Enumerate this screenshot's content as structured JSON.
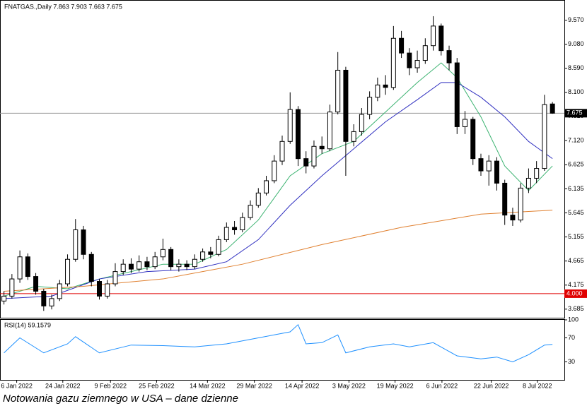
{
  "chart_data": [
    {
      "type": "candlestick",
      "title": "FNATGAS.,Daily  7.863 7.903 7.663 7.675",
      "xlim": [
        -0.5,
        70.5
      ],
      "ylim": [
        3.51,
        9.98
      ],
      "yticks": [
        {
          "value": 9.57,
          "label": "9.570"
        },
        {
          "value": 9.08,
          "label": "9.080"
        },
        {
          "value": 8.59,
          "label": "8.590"
        },
        {
          "value": 8.1,
          "label": "8.100"
        },
        {
          "value": 7.61,
          "label": "7.610"
        },
        {
          "value": 7.12,
          "label": "7.120"
        },
        6.625,
        6.135,
        5.645,
        5.155,
        4.665,
        4.175,
        3.685
      ],
      "open": [
        3.85,
        3.95,
        4.3,
        4.75,
        4.35,
        4.05,
        3.75,
        3.9,
        4.2,
        4.7,
        5.3,
        4.8,
        4.25,
        3.95,
        4.2,
        4.45,
        4.6,
        4.5,
        4.65,
        4.55,
        4.75,
        4.9,
        4.55,
        4.6,
        4.55,
        4.7,
        4.85,
        4.8,
        5.1,
        5.35,
        5.3,
        5.55,
        5.8,
        6.05,
        6.3,
        6.7,
        7.1,
        7.75,
        6.75,
        6.6,
        7.0,
        6.95,
        7.7,
        8.55,
        7.1,
        7.3,
        7.65,
        8.0,
        8.25,
        8.2,
        9.2,
        8.9,
        8.6,
        8.75,
        9.05,
        9.45,
        8.95,
        8.7,
        7.4,
        7.55,
        6.75,
        6.5,
        6.7,
        6.25,
        5.6,
        5.5,
        6.15,
        6.35,
        6.55,
        7.863
      ],
      "high": [
        4.05,
        4.4,
        4.88,
        4.82,
        4.42,
        4.1,
        3.98,
        4.28,
        4.8,
        5.52,
        5.38,
        4.85,
        4.3,
        4.28,
        4.62,
        4.7,
        4.72,
        4.78,
        4.75,
        4.85,
        5.12,
        4.95,
        4.7,
        4.68,
        4.8,
        4.92,
        4.95,
        5.18,
        5.45,
        5.48,
        5.65,
        5.9,
        6.15,
        6.4,
        6.82,
        7.22,
        8.1,
        7.82,
        6.9,
        7.12,
        7.2,
        7.85,
        8.92,
        8.62,
        7.45,
        7.78,
        8.12,
        8.4,
        8.45,
        9.45,
        9.35,
        9.0,
        8.95,
        9.2,
        9.65,
        9.5,
        9.05,
        8.8,
        7.72,
        7.6,
        6.85,
        6.82,
        6.78,
        6.32,
        5.75,
        6.25,
        6.55,
        6.7,
        8.05,
        7.903
      ],
      "low": [
        3.78,
        3.9,
        4.22,
        4.28,
        3.98,
        3.65,
        3.68,
        3.85,
        4.15,
        4.65,
        4.7,
        4.15,
        3.88,
        3.9,
        4.15,
        4.38,
        4.42,
        4.45,
        4.48,
        4.5,
        4.68,
        4.48,
        4.45,
        4.48,
        4.5,
        4.65,
        4.72,
        4.76,
        5.05,
        5.2,
        5.25,
        5.5,
        5.75,
        6.0,
        6.25,
        6.62,
        7.05,
        6.6,
        6.45,
        6.55,
        6.85,
        6.9,
        7.65,
        6.4,
        7.0,
        7.22,
        7.55,
        7.92,
        8.05,
        8.15,
        8.8,
        8.45,
        8.5,
        8.68,
        8.95,
        8.85,
        8.55,
        7.25,
        7.25,
        6.62,
        6.4,
        6.2,
        6.1,
        5.4,
        5.38,
        5.45,
        6.05,
        6.25,
        6.5,
        7.663
      ],
      "close": [
        3.95,
        4.3,
        4.75,
        4.35,
        4.05,
        3.75,
        3.9,
        4.2,
        4.7,
        5.3,
        4.8,
        4.25,
        3.95,
        4.2,
        4.45,
        4.6,
        4.5,
        4.65,
        4.55,
        4.75,
        4.9,
        4.55,
        4.6,
        4.55,
        4.7,
        4.85,
        4.8,
        5.1,
        5.35,
        5.3,
        5.55,
        5.8,
        6.05,
        6.3,
        6.7,
        7.1,
        7.75,
        6.75,
        6.6,
        7.0,
        6.95,
        7.7,
        8.55,
        7.1,
        7.3,
        7.65,
        8.0,
        8.25,
        8.2,
        9.2,
        8.9,
        8.6,
        8.75,
        9.05,
        9.45,
        8.95,
        8.7,
        7.4,
        7.55,
        6.75,
        6.5,
        6.7,
        6.25,
        5.6,
        5.5,
        6.15,
        6.35,
        6.55,
        7.85,
        7.675
      ],
      "up_color": "#ffffff",
      "down_color": "#000000",
      "series": [
        {
          "color": "#3cb371",
          "x": [
            0,
            4,
            8,
            12,
            16,
            20,
            24,
            28,
            32,
            36,
            40,
            44,
            48,
            52,
            55,
            57,
            60,
            63,
            66,
            69
          ],
          "values": [
            3.95,
            4.15,
            4.1,
            4.3,
            4.45,
            4.6,
            4.6,
            4.9,
            5.5,
            6.4,
            6.85,
            7.1,
            7.7,
            8.3,
            8.7,
            8.4,
            7.6,
            6.6,
            6.1,
            6.6
          ]
        },
        {
          "color": "#3030c0",
          "x": [
            0,
            6,
            12,
            18,
            24,
            28,
            32,
            36,
            40,
            44,
            48,
            52,
            55,
            57,
            60,
            63,
            66,
            69
          ],
          "values": [
            3.9,
            3.95,
            4.3,
            4.45,
            4.5,
            4.65,
            5.1,
            5.8,
            6.4,
            6.95,
            7.5,
            7.95,
            8.3,
            8.3,
            8.0,
            7.6,
            7.1,
            6.75
          ]
        },
        {
          "color": "#e08030",
          "x": [
            0,
            10,
            20,
            30,
            40,
            50,
            60,
            69
          ],
          "values": [
            4.05,
            4.15,
            4.3,
            4.6,
            5.0,
            5.35,
            5.62,
            5.7
          ]
        }
      ],
      "last_price": {
        "value": 7.675,
        "label": "7.675"
      },
      "level": {
        "value": 4.0,
        "label": "4.000",
        "color": "#e00000"
      }
    },
    {
      "type": "line",
      "title": "RSI(14) 59.1579",
      "xlim": [
        -0.5,
        70.5
      ],
      "ylim": [
        0,
        100
      ],
      "yticks": [
        100,
        70,
        30
      ],
      "xticks": [
        {
          "value": 1.6,
          "label": "6 Jan 2022"
        },
        {
          "value": 7.4,
          "label": "24 Jan 2022"
        },
        {
          "value": 13.4,
          "label": "9 Feb 2022"
        },
        {
          "value": 19.2,
          "label": "25 Feb 2022"
        },
        {
          "value": 25.6,
          "label": "14 Mar 2022"
        },
        {
          "value": 31.5,
          "label": "29 Mar 2022"
        },
        {
          "value": 37.5,
          "label": "14 Apr 2022"
        },
        {
          "value": 43.4,
          "label": "3 May 2022"
        },
        {
          "value": 49.2,
          "label": "19 May 2022"
        },
        {
          "value": 55.1,
          "label": "6 Jun 2022"
        },
        {
          "value": 61.3,
          "label": "22 Jun 2022"
        },
        {
          "value": 67.1,
          "label": "8 Jul 2022"
        }
      ],
      "series": [
        {
          "color": "#1e90ff",
          "x": [
            0,
            2,
            5,
            8,
            9,
            12,
            16,
            20,
            24,
            28,
            32,
            36,
            37,
            38,
            40,
            42,
            43,
            46,
            49,
            51,
            54,
            57,
            60,
            62,
            64,
            66,
            68,
            69
          ],
          "values": [
            45,
            70,
            45,
            60,
            72,
            45,
            58,
            57,
            55,
            60,
            70,
            80,
            92,
            60,
            62,
            75,
            45,
            55,
            60,
            55,
            62,
            40,
            35,
            38,
            30,
            42,
            58,
            59.1579
          ]
        }
      ]
    }
  ],
  "caption": "Notowania gazu ziemnego w USA – dane dzienne"
}
